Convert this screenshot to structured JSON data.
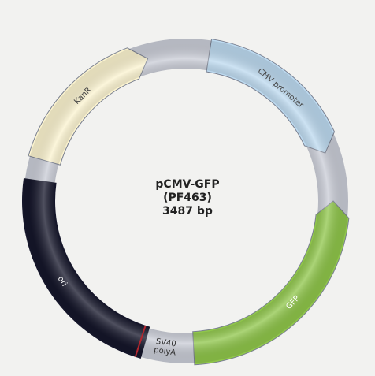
{
  "plasmid": {
    "name": "pCMV-GFP",
    "id": "(PF463)",
    "size": "3487 bp",
    "backbone_color": "#c9ccd6",
    "features": [
      {
        "label": "CMV promoter",
        "kind": "arrow",
        "start_deg": 9,
        "end_deg": 71,
        "color": "#bcd9ef",
        "dir": "cw",
        "text_color": "#444"
      },
      {
        "label": "GFP",
        "kind": "arrow",
        "start_deg": 90,
        "end_deg": 177,
        "color": "#8fc64a",
        "dir": "ccw",
        "text_color": "#ffffff"
      },
      {
        "label": "SV40\npolyA",
        "kind": "text",
        "start_deg": 178,
        "end_deg": 198,
        "color": "#c9ccd6",
        "dir": "none",
        "text_color": "#333"
      },
      {
        "label": "ori",
        "kind": "block",
        "start_deg": 196,
        "end_deg": 278,
        "color": "#15162a",
        "dir": "none",
        "text_color": "#ffffff"
      },
      {
        "label": "KanR",
        "kind": "arrow",
        "start_deg": 286,
        "end_deg": 345,
        "color": "#fbf3cf",
        "dir": "cw",
        "text_color": "#444"
      }
    ],
    "marker_deg": 198
  }
}
